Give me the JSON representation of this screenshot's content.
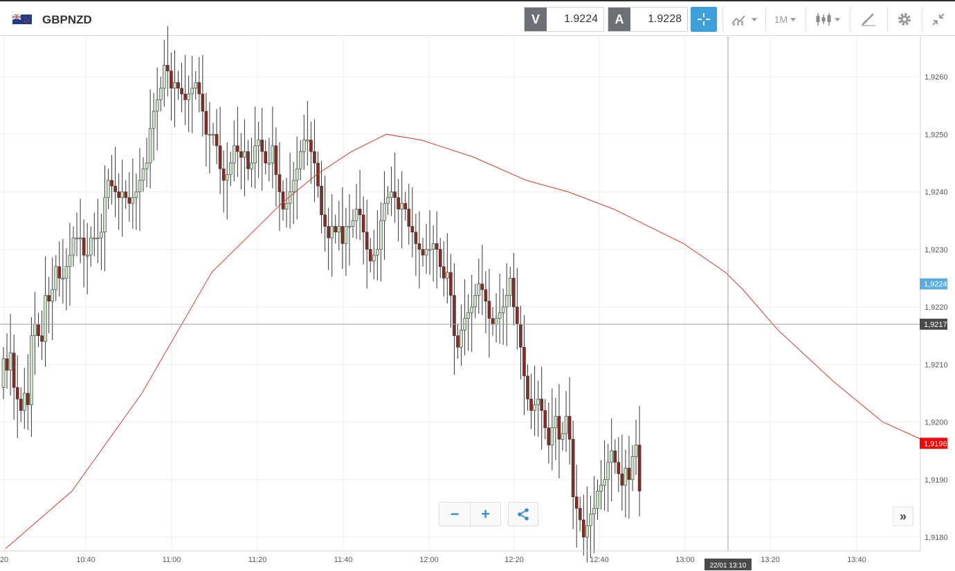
{
  "header": {
    "symbol": "GBPNZD",
    "flag_icon": "uk-nz-flag-icon",
    "sell_label": "V",
    "sell_value": "1.9224",
    "buy_label": "A",
    "buy_value": "1.9228",
    "timeframe_label": "1M",
    "icons": [
      "crosshair-icon",
      "chart-type-icon",
      "candlestick-icon",
      "draw-tools-icon",
      "gear-icon",
      "collapse-icon"
    ]
  },
  "controls": {
    "zoom_out_label": "−",
    "zoom_in_label": "+",
    "share_icon": "share-icon",
    "more_label": "»"
  },
  "colors": {
    "up_candle": "#c8e6c3",
    "down_candle": "#8b2a1e",
    "moving_average": "#d93a2c",
    "current_price_badge": "#ff0000",
    "bid_badge": "#5aabdf",
    "crosshair_badge": "#4a4a4a"
  },
  "chart_data": {
    "type": "candlestick",
    "x_range": [
      "10:21",
      "13:49"
    ],
    "ylim": [
      1.9177,
      1.9266
    ],
    "grid": true,
    "y_ticks": [
      "1,9260",
      "1,9250",
      "1,9240",
      "1,9230",
      "1,9220",
      "1,9210",
      "1,9200",
      "1,9190",
      "1,9180"
    ],
    "x_ticks": [
      "20",
      "10:40",
      "11:00",
      "11:20",
      "11:40",
      "12:00",
      "12:20",
      "12:40",
      "13:00",
      "13:20",
      "13:40"
    ],
    "price_badges": {
      "bid": "1,9224",
      "crosshair": "1,9217",
      "current": "1,9196"
    },
    "crosshair": {
      "time": "22/01 13:10",
      "price": 1.9217
    },
    "candles_close": [
      1.9211,
      1.9209,
      1.9212,
      1.9206,
      1.9204,
      1.9202,
      1.9205,
      1.9203,
      1.9215,
      1.9217,
      1.9215,
      1.9214,
      1.9222,
      1.9221,
      1.9223,
      1.9227,
      1.9225,
      1.9225,
      1.9227,
      1.9229,
      1.9232,
      1.9232,
      1.9232,
      1.9229,
      1.9229,
      1.9232,
      1.9232,
      1.9232,
      1.9233,
      1.9239,
      1.9242,
      1.9241,
      1.924,
      1.9239,
      1.924,
      1.9239,
      1.9238,
      1.9239,
      1.924,
      1.9242,
      1.9244,
      1.9245,
      1.9251,
      1.9254,
      1.9256,
      1.9258,
      1.9262,
      1.9261,
      1.9258,
      1.9259,
      1.9258,
      1.9257,
      1.9256,
      1.9257,
      1.9258,
      1.9259,
      1.9257,
      1.9254,
      1.925,
      1.925,
      1.925,
      1.9248,
      1.9244,
      1.9242,
      1.9243,
      1.9245,
      1.9248,
      1.9247,
      1.9246,
      1.9247,
      1.9244,
      1.9245,
      1.9248,
      1.9249,
      1.9247,
      1.9245,
      1.9245,
      1.9248,
      1.9243,
      1.924,
      1.9237,
      1.9238,
      1.924,
      1.9242,
      1.9244,
      1.9247,
      1.9249,
      1.9249,
      1.9247,
      1.9245,
      1.9241,
      1.9236,
      1.9234,
      1.9232,
      1.9234,
      1.9233,
      1.9234,
      1.9231,
      1.9234,
      1.9234,
      1.9235,
      1.9237,
      1.9236,
      1.9233,
      1.923,
      1.9228,
      1.9229,
      1.923,
      1.9235,
      1.9238,
      1.9239,
      1.924,
      1.9239,
      1.9237,
      1.9238,
      1.9237,
      1.9234,
      1.9233,
      1.9231,
      1.923,
      1.9229,
      1.923,
      1.923,
      1.9231,
      1.923,
      1.9227,
      1.9225,
      1.9226,
      1.9222,
      1.9215,
      1.9213,
      1.9216,
      1.9218,
      1.9219,
      1.922,
      1.9222,
      1.9224,
      1.9223,
      1.9221,
      1.9218,
      1.9217,
      1.9218,
      1.9219,
      1.922,
      1.9222,
      1.9225,
      1.922,
      1.9217,
      1.9213,
      1.9208,
      1.9204,
      1.9202,
      1.9203,
      1.9204,
      1.9202,
      1.9199,
      1.9196,
      1.9199,
      1.9201,
      1.9197,
      1.9198,
      1.9201,
      1.9197,
      1.9187,
      1.9185,
      1.9183,
      1.918,
      1.9182,
      1.9184,
      1.9185,
      1.9188,
      1.9189,
      1.919,
      1.9193,
      1.9195,
      1.9193,
      1.9191,
      1.9189,
      1.9192,
      1.919,
      1.9194,
      1.9196,
      1.9188
    ],
    "moving_average": [
      [
        1,
        1.9178
      ],
      [
        20,
        1.9188
      ],
      [
        40,
        1.9205
      ],
      [
        60,
        1.9226
      ],
      [
        80,
        1.9238
      ],
      [
        90,
        1.9243
      ],
      [
        100,
        1.9247
      ],
      [
        110,
        1.925
      ],
      [
        120,
        1.9249
      ],
      [
        135,
        1.9246
      ],
      [
        150,
        1.9242
      ],
      [
        162,
        1.924
      ],
      [
        175,
        1.9237
      ],
      [
        185,
        1.9234
      ],
      [
        195,
        1.9231
      ],
      [
        207,
        1.9226
      ],
      [
        212,
        1.9223
      ],
      [
        222,
        1.9216
      ],
      [
        238,
        1.9207
      ],
      [
        252,
        1.92
      ],
      [
        263,
        1.9197
      ]
    ]
  }
}
